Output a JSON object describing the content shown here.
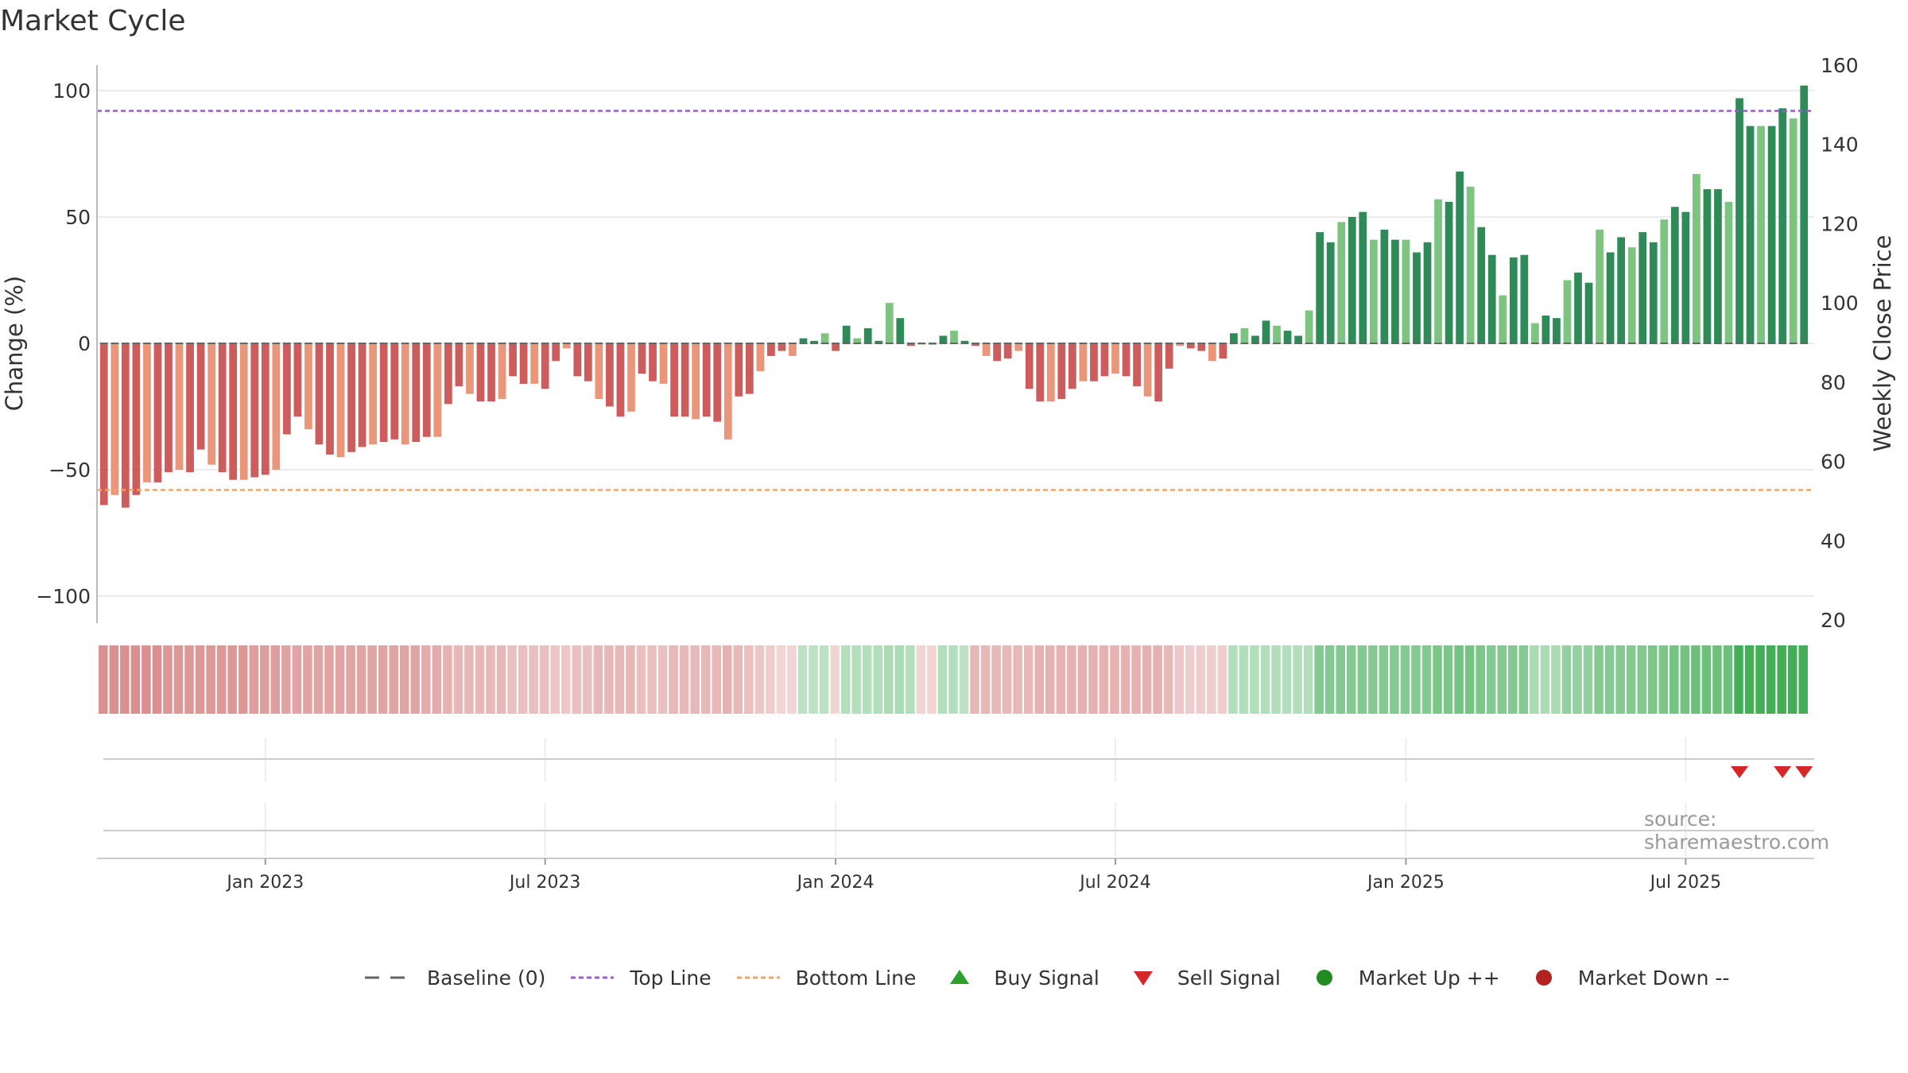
{
  "title": "Market Cycle",
  "source": "source: sharemaestro.com",
  "legend": [
    {
      "label": "Baseline (0)",
      "icon": "dash-grey-line-icon"
    },
    {
      "label": "Top Line",
      "icon": "dotted-purple-line-icon"
    },
    {
      "label": "Bottom Line",
      "icon": "dotted-orange-line-icon"
    },
    {
      "label": "Buy Signal",
      "icon": "green-triangle-up-icon"
    },
    {
      "label": "Sell Signal",
      "icon": "red-triangle-down-icon"
    },
    {
      "label": "Market Up ++",
      "icon": "green-circle-icon"
    },
    {
      "label": "Market Down --",
      "icon": "red-circle-icon"
    }
  ],
  "colors": {
    "bar_up_strong": "#2e8b57",
    "bar_up_light": "#7cc47f",
    "bar_down_strong": "#cd5c5c",
    "bar_down_light": "#e9967a",
    "top_line": "#9b59d0",
    "bottom_line": "#f4a460",
    "sell_signal": "#d62728",
    "buy_signal": "#2ca02c",
    "baseline": "#666666"
  },
  "chart_data": {
    "type": "bar",
    "title": "Market Cycle",
    "ylabel": "Change (%)",
    "y2label": "Weekly Close Price",
    "ylim": [
      -110,
      110
    ],
    "y2lim": [
      20,
      160
    ],
    "yticks": [
      100,
      50,
      0,
      -50,
      -100
    ],
    "yticklabels": [
      "100",
      "50",
      "0",
      "−50",
      "−100"
    ],
    "y2ticks": [
      160,
      140,
      120,
      100,
      80,
      60,
      40,
      20
    ],
    "xticks": [
      "Jan 2023",
      "Jul 2023",
      "Jan 2024",
      "Jul 2024",
      "Jan 2025",
      "Jul 2025"
    ],
    "top_line": 92,
    "bottom_line": -58,
    "baseline": 0,
    "values": [
      -64,
      -60,
      -65,
      -60,
      -55,
      -55,
      -51,
      -50,
      -51,
      -42,
      -48,
      -51,
      -54,
      -54,
      -53,
      -52,
      -50,
      -36,
      -29,
      -34,
      -40,
      -44,
      -45,
      -43,
      -41,
      -40,
      -39,
      -38,
      -40,
      -39,
      -37,
      -37,
      -24,
      -17,
      -20,
      -23,
      -23,
      -22,
      -13,
      -16,
      -16,
      -18,
      -7,
      -2,
      -13,
      -15,
      -22,
      -25,
      -29,
      -27,
      -12,
      -15,
      -16,
      -29,
      -29,
      -30,
      -29,
      -31,
      -38,
      -21,
      -20,
      -11,
      -5,
      -3,
      -5,
      2,
      1,
      4,
      -3,
      7,
      2,
      6,
      1,
      16,
      10,
      -1,
      0,
      0,
      3,
      5,
      1,
      -1,
      -5,
      -7,
      -6,
      -3,
      -18,
      -23,
      -23,
      -22,
      -18,
      -15,
      -15,
      -13,
      -12,
      -13,
      -17,
      -21,
      -23,
      -10,
      -1,
      -2,
      -3,
      -7,
      -6,
      4,
      6,
      3,
      9,
      7,
      5,
      3,
      13,
      44,
      40,
      48,
      50,
      52,
      41,
      45,
      41,
      41,
      36,
      40,
      57,
      56,
      68,
      62,
      46,
      35,
      19,
      34,
      35,
      8,
      11,
      10,
      25,
      28,
      24,
      45,
      36,
      42,
      38,
      44,
      40,
      49,
      54,
      52,
      67,
      61,
      61,
      56,
      97,
      86,
      86,
      86,
      93,
      89,
      102
    ],
    "ribbon": [
      -0.6,
      -0.6,
      -0.6,
      -0.6,
      -0.6,
      -0.6,
      -0.55,
      -0.55,
      -0.55,
      -0.55,
      -0.55,
      -0.55,
      -0.55,
      -0.55,
      -0.5,
      -0.5,
      -0.5,
      -0.45,
      -0.45,
      -0.45,
      -0.45,
      -0.45,
      -0.45,
      -0.45,
      -0.45,
      -0.45,
      -0.45,
      -0.45,
      -0.45,
      -0.45,
      -0.4,
      -0.4,
      -0.35,
      -0.3,
      -0.3,
      -0.3,
      -0.3,
      -0.3,
      -0.25,
      -0.25,
      -0.25,
      -0.25,
      -0.2,
      -0.2,
      -0.25,
      -0.25,
      -0.3,
      -0.3,
      -0.3,
      -0.3,
      -0.25,
      -0.25,
      -0.25,
      -0.3,
      -0.3,
      -0.3,
      -0.3,
      -0.3,
      -0.35,
      -0.3,
      -0.25,
      -0.2,
      -0.15,
      -0.1,
      -0.1,
      0.2,
      0.2,
      0.2,
      -0.1,
      0.25,
      0.25,
      0.25,
      0.25,
      0.3,
      0.3,
      0.25,
      -0.1,
      -0.1,
      0.25,
      0.25,
      0.2,
      -0.3,
      -0.3,
      -0.3,
      -0.3,
      -0.3,
      -0.3,
      -0.35,
      -0.35,
      -0.35,
      -0.35,
      -0.35,
      -0.35,
      -0.35,
      -0.35,
      -0.35,
      -0.35,
      -0.35,
      -0.35,
      -0.3,
      -0.2,
      -0.15,
      -0.15,
      -0.15,
      -0.15,
      0.25,
      0.25,
      0.25,
      0.25,
      0.25,
      0.25,
      0.25,
      0.25,
      0.55,
      0.55,
      0.55,
      0.55,
      0.55,
      0.55,
      0.55,
      0.55,
      0.55,
      0.55,
      0.55,
      0.6,
      0.6,
      0.65,
      0.65,
      0.6,
      0.55,
      0.55,
      0.55,
      0.55,
      0.3,
      0.3,
      0.3,
      0.45,
      0.45,
      0.45,
      0.55,
      0.55,
      0.55,
      0.55,
      0.55,
      0.6,
      0.6,
      0.65,
      0.65,
      0.7,
      0.7,
      0.7,
      0.7,
      0.95,
      0.95,
      0.95,
      0.95,
      0.95,
      0.95,
      0.95
    ],
    "sell_signals": [
      152,
      156,
      158
    ],
    "buy_signals": []
  }
}
